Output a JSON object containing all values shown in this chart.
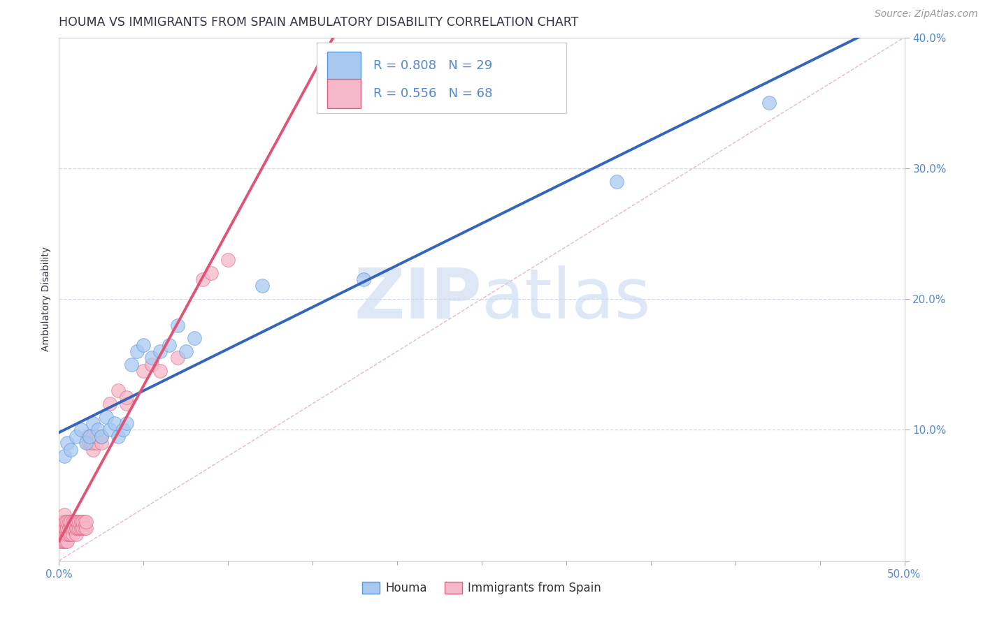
{
  "title": "HOUMA VS IMMIGRANTS FROM SPAIN AMBULATORY DISABILITY CORRELATION CHART",
  "source_text": "Source: ZipAtlas.com",
  "ylabel": "Ambulatory Disability",
  "xlim": [
    0.0,
    0.5
  ],
  "ylim": [
    0.0,
    0.4
  ],
  "houma_color": "#a8c8f0",
  "houma_edge_color": "#5599dd",
  "houma_line_color": "#3366bb",
  "spain_color": "#f5b8c8",
  "spain_edge_color": "#e06080",
  "spain_line_color": "#e05575",
  "ref_line_color": "#d0d8e8",
  "grid_color": "#d0d8e8",
  "background_color": "#ffffff",
  "watermark_zip_color": "#c8d8f0",
  "watermark_atlas_color": "#c8d8f0",
  "legend_R_houma": "R = 0.808",
  "legend_N_houma": "N = 29",
  "legend_R_spain": "R = 0.556",
  "legend_N_spain": "N = 68",
  "title_color": "#333344",
  "axis_label_color": "#333344",
  "tick_color": "#5588cc",
  "title_fontsize": 12.5,
  "axis_label_fontsize": 10,
  "tick_fontsize": 11,
  "source_fontsize": 10,
  "legend_fontsize": 13,
  "houma_x": [
    0.003,
    0.005,
    0.007,
    0.01,
    0.013,
    0.016,
    0.018,
    0.02,
    0.023,
    0.025,
    0.028,
    0.03,
    0.033,
    0.035,
    0.038,
    0.04,
    0.043,
    0.046,
    0.05,
    0.055,
    0.06,
    0.065,
    0.07,
    0.075,
    0.08,
    0.12,
    0.18,
    0.33,
    0.42
  ],
  "houma_y": [
    0.08,
    0.09,
    0.085,
    0.095,
    0.1,
    0.09,
    0.095,
    0.105,
    0.1,
    0.095,
    0.11,
    0.1,
    0.105,
    0.095,
    0.1,
    0.105,
    0.15,
    0.16,
    0.165,
    0.155,
    0.16,
    0.165,
    0.18,
    0.16,
    0.17,
    0.21,
    0.215,
    0.29,
    0.35
  ],
  "spain_x": [
    0.001,
    0.001,
    0.001,
    0.002,
    0.002,
    0.002,
    0.002,
    0.003,
    0.003,
    0.003,
    0.003,
    0.003,
    0.004,
    0.004,
    0.004,
    0.004,
    0.005,
    0.005,
    0.005,
    0.005,
    0.006,
    0.006,
    0.006,
    0.007,
    0.007,
    0.007,
    0.008,
    0.008,
    0.008,
    0.009,
    0.009,
    0.01,
    0.01,
    0.01,
    0.011,
    0.011,
    0.012,
    0.012,
    0.013,
    0.013,
    0.014,
    0.014,
    0.015,
    0.015,
    0.016,
    0.016,
    0.017,
    0.017,
    0.018,
    0.018,
    0.019,
    0.02,
    0.02,
    0.022,
    0.022,
    0.025,
    0.025,
    0.03,
    0.035,
    0.04,
    0.04,
    0.05,
    0.055,
    0.06,
    0.07,
    0.085,
    0.09,
    0.1
  ],
  "spain_y": [
    0.015,
    0.02,
    0.025,
    0.015,
    0.02,
    0.025,
    0.03,
    0.015,
    0.02,
    0.025,
    0.03,
    0.035,
    0.015,
    0.02,
    0.025,
    0.03,
    0.015,
    0.02,
    0.025,
    0.03,
    0.02,
    0.025,
    0.03,
    0.02,
    0.025,
    0.03,
    0.02,
    0.025,
    0.03,
    0.025,
    0.03,
    0.02,
    0.025,
    0.03,
    0.025,
    0.03,
    0.025,
    0.03,
    0.025,
    0.03,
    0.025,
    0.03,
    0.025,
    0.03,
    0.025,
    0.03,
    0.09,
    0.095,
    0.09,
    0.095,
    0.09,
    0.085,
    0.09,
    0.09,
    0.095,
    0.09,
    0.095,
    0.12,
    0.13,
    0.12,
    0.125,
    0.145,
    0.15,
    0.145,
    0.155,
    0.215,
    0.22,
    0.23
  ]
}
